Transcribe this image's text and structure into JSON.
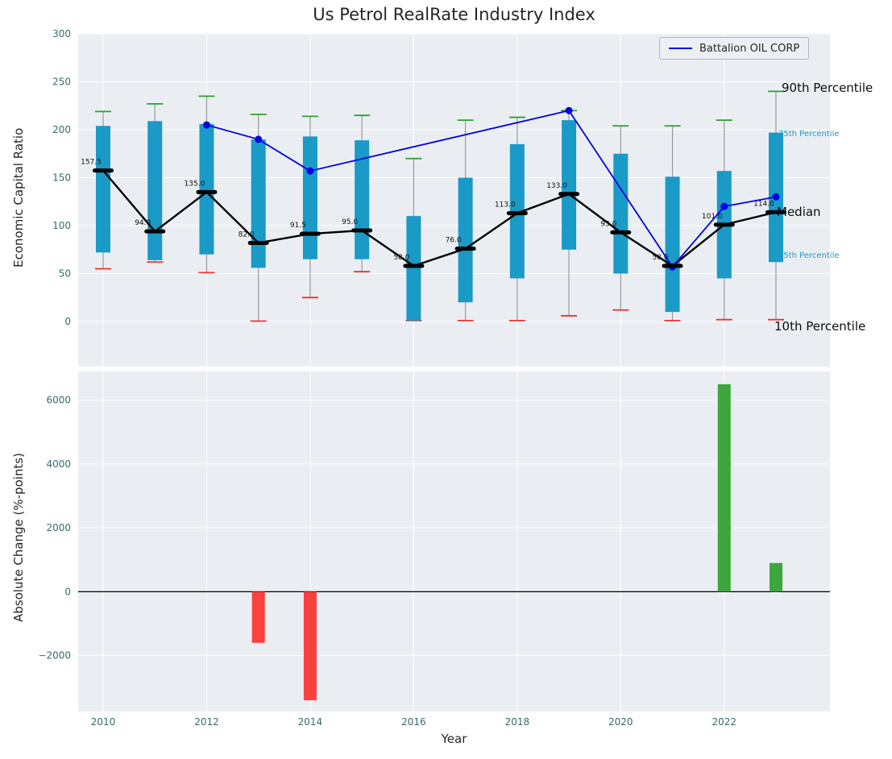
{
  "title": "Us Petrol RealRate Industry Index",
  "chart_data": [
    {
      "type": "boxplot",
      "title": "Us Petrol RealRate Industry Index",
      "ylabel": "Economic Capital Ratio",
      "ylim": [
        -47,
        300
      ],
      "yticks": [
        0,
        50,
        100,
        150,
        200,
        250,
        300
      ],
      "grid_years": [
        2010,
        2012,
        2014,
        2016,
        2018,
        2020,
        2022
      ],
      "years": [
        2010,
        2011,
        2012,
        2013,
        2014,
        2015,
        2016,
        2017,
        2018,
        2019,
        2020,
        2021,
        2022,
        2023
      ],
      "p90": [
        219,
        227,
        235,
        216,
        214,
        215,
        170,
        210,
        213,
        220,
        204,
        204,
        210,
        240
      ],
      "p75": [
        204,
        209,
        206,
        190,
        193,
        189,
        110,
        150,
        185,
        210,
        175,
        151,
        157,
        197
      ],
      "median": [
        157.5,
        94,
        135,
        82,
        91.5,
        95,
        58,
        76,
        113,
        133,
        93,
        58,
        101,
        114
      ],
      "p25": [
        72,
        64,
        70,
        56,
        65,
        65,
        1,
        20,
        45,
        75,
        50,
        10,
        45,
        62
      ],
      "p10": [
        55,
        62,
        51,
        0.5,
        25,
        52,
        1,
        1,
        1,
        6,
        12,
        1,
        2,
        2
      ],
      "median_labels": [
        "157.5",
        "94.0",
        "135.0",
        "82.0",
        "91.5",
        "95.0",
        "58.0",
        "76.0",
        "113.0",
        "133.0",
        "93.0",
        "58.0",
        "101.0",
        "114.0"
      ],
      "company": {
        "name": "Battalion OIL CORP",
        "color": "#0000e6",
        "points": [
          [
            2012,
            205
          ],
          [
            2013,
            190
          ],
          [
            2014,
            157
          ],
          [
            2019,
            220
          ],
          [
            2021,
            57
          ],
          [
            2022,
            120
          ],
          [
            2023,
            130
          ]
        ]
      },
      "annotations": [
        {
          "text": "90th Percentile"
        },
        {
          "text": "75th Percentile"
        },
        {
          "text": "Median"
        },
        {
          "text": "25th Percentile"
        },
        {
          "text": "10th Percentile"
        }
      ],
      "colors": {
        "box": "#1a9ac7",
        "median": "#000000",
        "cap_high": "#2ca02c",
        "cap_low": "#f03030",
        "whisker": "#999999",
        "background": "#eaeef2"
      },
      "legend_position": "upper right",
      "grid": true
    },
    {
      "type": "bar",
      "ylabel": "Absolute Change (%-points)",
      "xlabel": "Year",
      "ylim": [
        -3750,
        6900
      ],
      "yticks": [
        -2000,
        0,
        2000,
        4000,
        6000
      ],
      "xticks": [
        2010,
        2012,
        2014,
        2016,
        2018,
        2020,
        2022
      ],
      "years": [
        2010,
        2011,
        2012,
        2013,
        2014,
        2015,
        2016,
        2017,
        2018,
        2019,
        2020,
        2021,
        2022,
        2023
      ],
      "values": [
        0,
        0,
        0,
        -1600,
        -3400,
        0,
        0,
        0,
        0,
        0,
        0,
        0,
        6500,
        900
      ],
      "colors": {
        "positive": "#3da63d",
        "negative": "#fb4040",
        "background": "#eaeef2"
      },
      "grid": true
    }
  ]
}
